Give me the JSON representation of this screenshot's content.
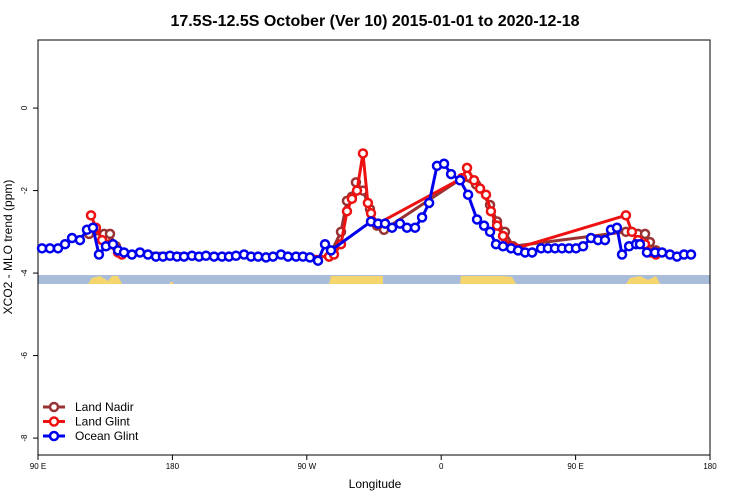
{
  "chart_data": {
    "type": "line",
    "title": "17.5S-12.5S October (Ver 10)   2015-01-01 to 2020-12-18",
    "x_label": "Longitude",
    "y_label": "XCO2 - MLO trend (ppm)",
    "xlim": [
      90,
      540
    ],
    "xticks": [
      {
        "value": 90,
        "label": "90 E"
      },
      180,
      {
        "value": 270,
        "label": "90 W"
      },
      {
        "value": 360,
        "label": "0"
      },
      {
        "value": 450,
        "label": "90 E"
      },
      {
        "value": 540,
        "label": "180"
      }
    ],
    "ylim": [
      -8.41,
      1.65
    ],
    "yticks": [
      0,
      -2,
      -4,
      -6,
      -8
    ],
    "legend": "bottom-left",
    "series": [
      {
        "name": "Land Nadir",
        "color": "#993333",
        "x": [
          124.2,
          134.2,
          138.2,
          142.2,
          144.9,
          284.9,
          292.9,
          296.9,
          300.2,
          302.9,
          307.6,
          312.3,
          317,
          321.7,
          373.9,
          383.3,
          392.7,
          397.4,
          402.7,
          408.1,
          483.7,
          491.8,
          496.5,
          499.8,
          503.8
        ],
        "values": [
          -3.05,
          -3.05,
          -3.05,
          -3.35,
          -3.5,
          -3.6,
          -3.0,
          -2.25,
          -2.15,
          -1.8,
          -2.0,
          -2.45,
          -2.85,
          -2.95,
          -1.7,
          -1.85,
          -2.35,
          -2.75,
          -3.0,
          -3.35,
          -3.0,
          -3.05,
          -3.05,
          -3.25,
          -3.45
        ]
      },
      {
        "name": "Land Glint",
        "color": "#ee1111",
        "x": [
          125.5,
          128.8,
          132.9,
          138.2,
          143.6,
          146.2,
          284.9,
          288.2,
          292.9,
          296.9,
          300.2,
          303.6,
          307.6,
          310.9,
          313,
          317.7,
          373.9,
          377.3,
          382,
          386,
          390,
          393.3,
          397.4,
          401.4,
          406.1,
          410.1,
          483.7,
          487.7,
          491.8,
          496.5,
          500.5,
          503.8
        ],
        "values": [
          -2.6,
          -2.9,
          -3.2,
          -3.3,
          -3.5,
          -3.55,
          -3.6,
          -3.55,
          -3.3,
          -2.5,
          -2.2,
          -2.0,
          -1.1,
          -2.3,
          -2.55,
          -2.8,
          -1.7,
          -1.45,
          -1.75,
          -1.95,
          -2.1,
          -2.5,
          -2.85,
          -3.1,
          -3.35,
          -3.4,
          -2.6,
          -3.0,
          -3.2,
          -3.3,
          -3.5,
          -3.55
        ]
      },
      {
        "name": "Ocean Glint",
        "color": "#0000ee",
        "x": [
          92.7,
          98,
          103.4,
          108.1,
          112.8,
          118.1,
          122.8,
          126.8,
          130.8,
          135.5,
          140.2,
          143.6,
          147.6,
          152.9,
          158.3,
          163.6,
          169,
          173.7,
          178.4,
          183.1,
          187.8,
          193.1,
          197.8,
          202.5,
          207.9,
          213.2,
          217.9,
          222.6,
          228,
          232.7,
          237.4,
          242.7,
          247.4,
          252.7,
          257.4,
          262.8,
          267.4,
          272.1,
          277.5,
          282.2,
          286.2,
          313,
          317.7,
          322.4,
          327.1,
          332.4,
          337.1,
          342.5,
          347.2,
          351.9,
          357.2,
          361.9,
          366.6,
          372.6,
          378,
          384,
          388.7,
          392.7,
          396.7,
          401.4,
          406.8,
          411.5,
          416.2,
          420.9,
          426.9,
          431.5,
          436.2,
          440.9,
          445.6,
          450.3,
          455,
          460.3,
          465,
          469.7,
          473.7,
          477.7,
          481.1,
          485.8,
          490.5,
          493.1,
          497.8,
          503.2,
          507.9,
          513.2,
          517.9,
          522.6,
          527.3
        ],
        "values": [
          -3.4,
          -3.4,
          -3.4,
          -3.3,
          -3.15,
          -3.2,
          -2.95,
          -2.9,
          -3.55,
          -3.35,
          -3.3,
          -3.45,
          -3.5,
          -3.55,
          -3.5,
          -3.55,
          -3.6,
          -3.6,
          -3.58,
          -3.6,
          -3.6,
          -3.58,
          -3.6,
          -3.58,
          -3.6,
          -3.6,
          -3.6,
          -3.58,
          -3.55,
          -3.6,
          -3.6,
          -3.62,
          -3.6,
          -3.55,
          -3.6,
          -3.6,
          -3.6,
          -3.62,
          -3.7,
          -3.3,
          -3.45,
          -2.75,
          -2.8,
          -2.8,
          -2.9,
          -2.8,
          -2.9,
          -2.9,
          -2.65,
          -2.3,
          -1.4,
          -1.35,
          -1.6,
          -1.75,
          -2.1,
          -2.7,
          -2.85,
          -3.0,
          -3.3,
          -3.35,
          -3.4,
          -3.45,
          -3.5,
          -3.5,
          -3.4,
          -3.4,
          -3.4,
          -3.4,
          -3.4,
          -3.4,
          -3.35,
          -3.15,
          -3.2,
          -3.2,
          -2.95,
          -2.9,
          -3.55,
          -3.35,
          -3.3,
          -3.3,
          -3.5,
          -3.5,
          -3.5,
          -3.55,
          -3.6,
          -3.55,
          -3.55
        ]
      }
    ]
  }
}
